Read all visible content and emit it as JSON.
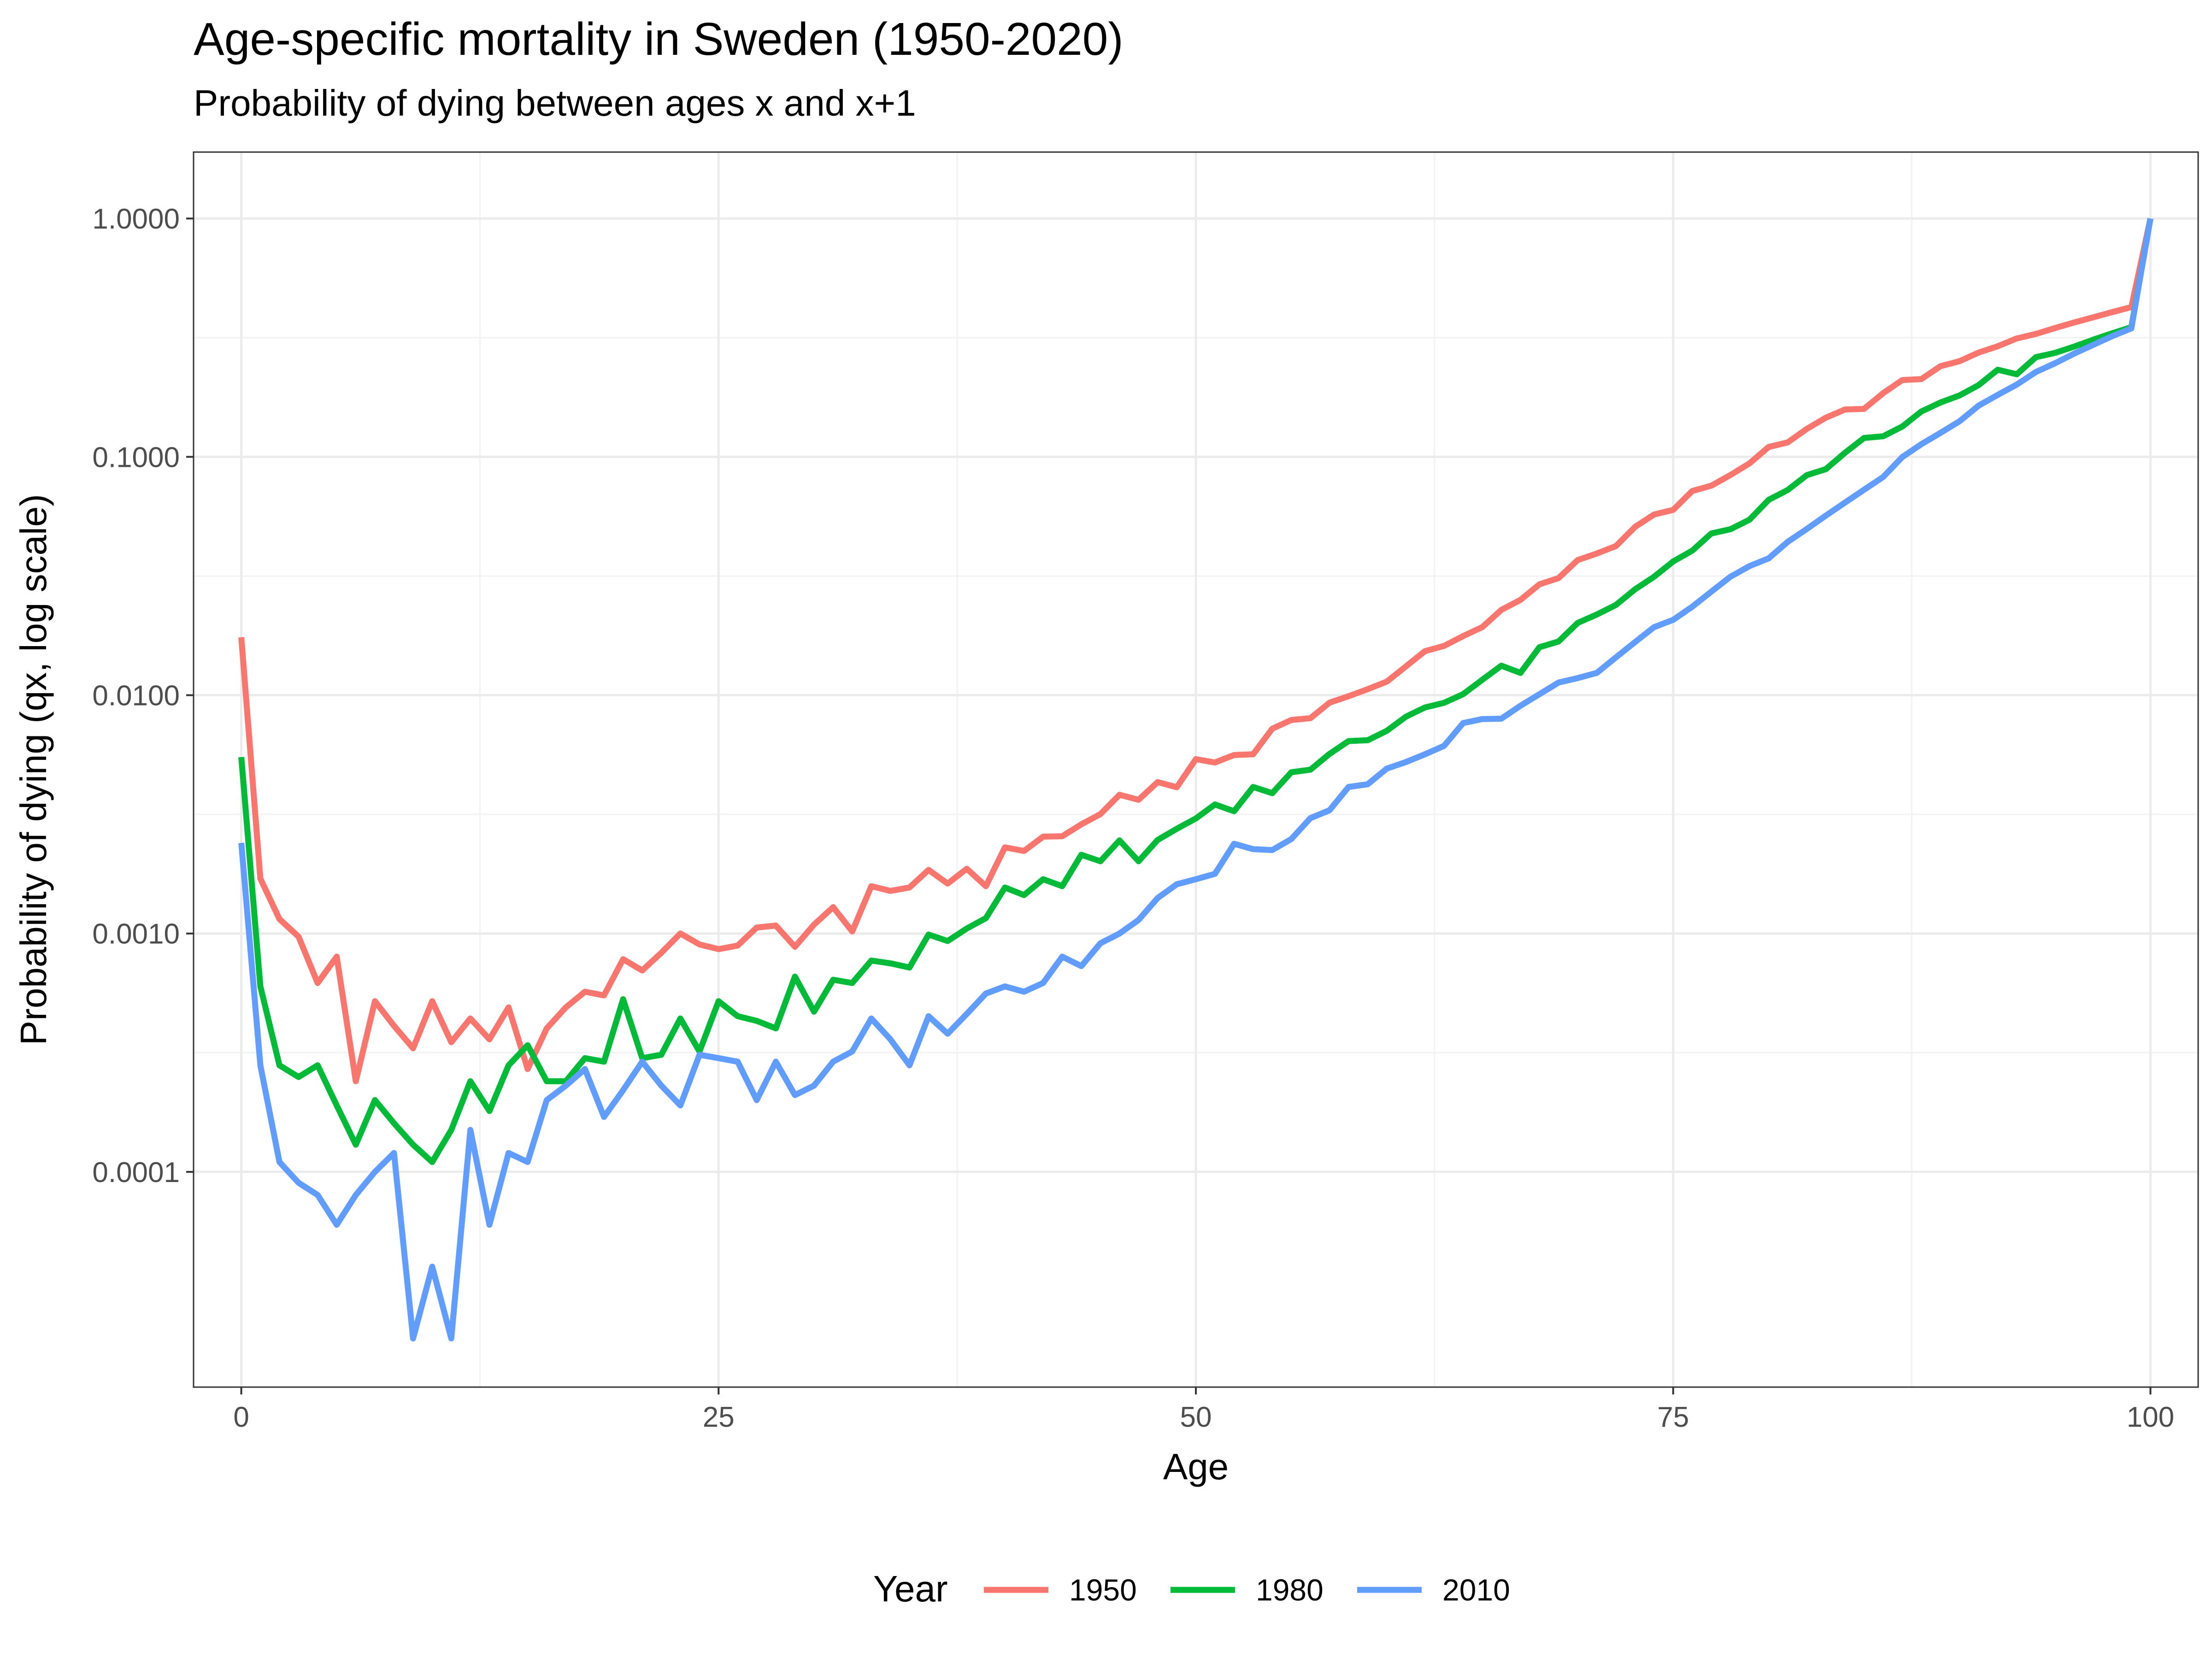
{
  "chart_data": {
    "type": "line",
    "title": "Age-specific mortality in Sweden (1950-2020)",
    "subtitle": "Probability of dying between ages x and x+1",
    "xlabel": "Age",
    "ylabel": "Probability of dying (qx, log scale)",
    "y_scale": "log10",
    "xlim": [
      -2.5,
      102.5
    ],
    "ylim": [
      1.25e-05,
      1.9
    ],
    "x_ticks": [
      0,
      25,
      50,
      75,
      100
    ],
    "x_tick_labels": [
      "0",
      "25",
      "50",
      "75",
      "100"
    ],
    "y_ticks": [
      0.0001,
      0.001,
      0.01,
      0.1,
      1
    ],
    "y_tick_labels": [
      "0.0001",
      "0.0010",
      "0.0100",
      "0.1000",
      "1.0000"
    ],
    "grid": true,
    "legend_position": "bottom",
    "legend_title": "Year",
    "series": [
      {
        "name": "1950",
        "color": "#F8766D",
        "values": [
          0.0175,
          0.0017,
          0.00115,
          0.00097,
          0.00062,
          0.0008,
          0.00024,
          0.00052,
          0.00041,
          0.00033,
          0.00052,
          0.00035,
          0.00044,
          0.00036,
          0.00049,
          0.00027,
          0.0004,
          0.00049,
          0.00057,
          0.00055,
          0.00078,
          0.0007,
          0.00083,
          0.001,
          0.0009,
          0.00086,
          0.00089,
          0.00106,
          0.00108,
          0.00088,
          0.00109,
          0.00129,
          0.00102,
          0.00158,
          0.00151,
          0.00156,
          0.00185,
          0.00162,
          0.00187,
          0.00158,
          0.0023,
          0.00222,
          0.00255,
          0.00256,
          0.00287,
          0.00317,
          0.00382,
          0.00364,
          0.00432,
          0.00411,
          0.00539,
          0.00522,
          0.00561,
          0.00565,
          0.00723,
          0.00787,
          0.00801,
          0.0093,
          0.0099,
          0.0106,
          0.0114,
          0.0132,
          0.0153,
          0.0161,
          0.0177,
          0.0193,
          0.0228,
          0.0251,
          0.0292,
          0.031,
          0.0369,
          0.0393,
          0.0422,
          0.0508,
          0.0573,
          0.0599,
          0.0719,
          0.0757,
          0.0839,
          0.0939,
          0.11,
          0.115,
          0.131,
          0.146,
          0.158,
          0.159,
          0.185,
          0.21,
          0.212,
          0.24,
          0.252,
          0.274,
          0.291,
          0.314,
          0.328,
          0.347,
          0.366,
          0.385,
          0.405,
          0.425,
          1.0
        ]
      },
      {
        "name": "1980",
        "color": "#00BA38",
        "values": [
          0.0055,
          0.0006,
          0.00028,
          0.00025,
          0.00028,
          0.00019,
          0.00013,
          0.0002,
          0.00016,
          0.00013,
          0.00011,
          0.00015,
          0.00024,
          0.00018,
          0.00028,
          0.00034,
          0.00024,
          0.00024,
          0.0003,
          0.00029,
          0.00053,
          0.0003,
          0.00031,
          0.00044,
          0.00032,
          0.00052,
          0.00045,
          0.00043,
          0.0004,
          0.00066,
          0.00047,
          0.00064,
          0.00062,
          0.00077,
          0.00075,
          0.00072,
          0.00099,
          0.00093,
          0.00105,
          0.00116,
          0.00156,
          0.00145,
          0.00169,
          0.00158,
          0.00214,
          0.00201,
          0.00246,
          0.00201,
          0.00247,
          0.00275,
          0.00304,
          0.00348,
          0.00326,
          0.00412,
          0.00388,
          0.00475,
          0.00487,
          0.00567,
          0.00642,
          0.00647,
          0.00709,
          0.00812,
          0.00888,
          0.00929,
          0.0101,
          0.0116,
          0.0133,
          0.0124,
          0.0159,
          0.0168,
          0.0201,
          0.0218,
          0.0239,
          0.0278,
          0.0314,
          0.0364,
          0.0404,
          0.0477,
          0.0497,
          0.0545,
          0.066,
          0.0726,
          0.0838,
          0.0888,
          0.104,
          0.12,
          0.122,
          0.134,
          0.155,
          0.169,
          0.181,
          0.2,
          0.232,
          0.222,
          0.262,
          0.273,
          0.29,
          0.31,
          0.33,
          0.35,
          1.0
        ]
      },
      {
        "name": "2010",
        "color": "#619CFF",
        "values": [
          0.0024,
          0.00028,
          0.00011,
          9e-05,
          8e-05,
          6e-05,
          8e-05,
          0.0001,
          0.00012,
          2e-05,
          4e-05,
          2e-05,
          0.00015,
          6e-05,
          0.00012,
          0.00011,
          0.0002,
          0.00023,
          0.00027,
          0.00017,
          0.00022,
          0.00029,
          0.00023,
          0.00019,
          0.00031,
          0.0003,
          0.00029,
          0.0002,
          0.00029,
          0.00021,
          0.00023,
          0.00029,
          0.00032,
          0.00044,
          0.00036,
          0.00028,
          0.00045,
          0.00038,
          0.00046,
          0.00056,
          0.0006,
          0.00057,
          0.00062,
          0.0008,
          0.00073,
          0.00091,
          0.001,
          0.00114,
          0.00141,
          0.00161,
          0.00169,
          0.00178,
          0.00238,
          0.00226,
          0.00224,
          0.00249,
          0.00305,
          0.00329,
          0.00412,
          0.00423,
          0.00492,
          0.00524,
          0.00565,
          0.00613,
          0.00764,
          0.00794,
          0.00797,
          0.00903,
          0.0101,
          0.0113,
          0.0118,
          0.0124,
          0.0144,
          0.0167,
          0.0193,
          0.0207,
          0.0235,
          0.0272,
          0.0314,
          0.0348,
          0.0375,
          0.044,
          0.0498,
          0.0567,
          0.0643,
          0.0728,
          0.0823,
          0.0998,
          0.113,
          0.126,
          0.141,
          0.164,
          0.182,
          0.201,
          0.227,
          0.247,
          0.271,
          0.295,
          0.321,
          0.346,
          1.0
        ]
      }
    ]
  }
}
